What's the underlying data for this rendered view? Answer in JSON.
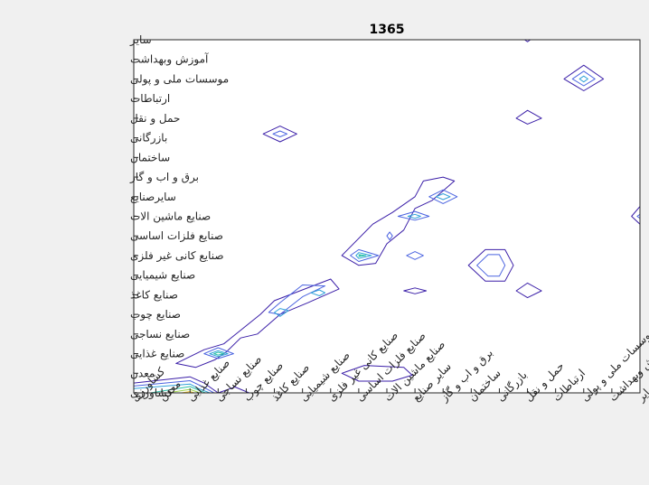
{
  "chart_data": {
    "type": "contour",
    "title": "1365",
    "xlabel": "",
    "ylabel": "",
    "grid": false,
    "categories": [
      "کشاورزی",
      "معدن",
      "صنایع غذایی",
      "صنایع نساجی",
      "صنایع چوب",
      "صنایع کاغذ",
      "صنایع شیمیایی",
      "صنایع کانی غیر فلزی",
      "صنایع فلزات اساسی",
      "صنایع ماشین الات",
      "سایر صنایع",
      "برق و اب و گاز",
      "ساختمان",
      "بازرگانی",
      "حمل و نقل",
      "ارتباطات",
      "موسسات ملی و پولی",
      "آموزش وبهداشت",
      "سایر"
    ],
    "x_tick_labels": [
      "کشاورزی",
      "معدن",
      "صنایع غذایی",
      "صنایع نساجی",
      "صنایع چوب",
      "صنایع کاغذ",
      "صنایع شیمیایی",
      "صنایع کانی غیر فلزی",
      "صنایع فلزات اساسی",
      "صنایع ماشین الات",
      "سایر صنایع",
      "برق و اب و گاز",
      "ساختمان",
      "بازرگانی",
      "حمل و نقل",
      "ارتباطات",
      "موسسات ملی و پولی",
      "آموزش وبهداشت",
      "سایر"
    ],
    "y_tick_labels": [
      "کشاورزی",
      "معدن",
      "صنایع غذایی",
      "صنایع  نساجی",
      "صنایع چوب",
      "صنایع کاغذ",
      "صنایع شیمیایی",
      "صنایع کانی غیر فلزی",
      "صنایع فلزات اساسی",
      "صنایع ماشین الات",
      "سایرصنایع",
      "برق و اب و گاز",
      "ساختمان",
      "بازرگانی",
      "حمل و نقل",
      "ارتباطات",
      "موسسات ملی و پولی",
      "آموزش وبهداشت",
      "سایر"
    ],
    "xlim": [
      1,
      19
    ],
    "ylim": [
      1,
      19
    ],
    "level_colors": [
      "#3b1fa8",
      "#4a63e0",
      "#2ea0d8",
      "#2cc0a8",
      "#9ed24a",
      "#f4c630"
    ],
    "contours": [
      {
        "id": "x1-3-y1-2",
        "level": 0,
        "path": [
          [
            1,
            1.5
          ],
          [
            3.0,
            1.82
          ],
          [
            3.5,
            1.5
          ],
          [
            4.0,
            1.0
          ]
        ]
      },
      {
        "id": "x1-3-y1-2b",
        "level": 1,
        "path": [
          [
            1,
            1.35
          ],
          [
            3.0,
            1.62
          ],
          [
            3.4,
            1.35
          ],
          [
            3.85,
            1.0
          ]
        ]
      },
      {
        "id": "x1-3-y1-2c",
        "level": 2,
        "path": [
          [
            1,
            1.22
          ],
          [
            3.0,
            1.45
          ],
          [
            3.3,
            1.22
          ],
          [
            3.7,
            1.0
          ]
        ]
      },
      {
        "id": "x1-3-y1-2d",
        "level": 3,
        "path": [
          [
            1.6,
            1.0
          ],
          [
            3.0,
            1.32
          ],
          [
            3.55,
            1.0
          ]
        ]
      },
      {
        "id": "x1-3-y1-2e",
        "level": 4,
        "path": [
          [
            2.2,
            1.0
          ],
          [
            3.0,
            1.18
          ],
          [
            3.35,
            1.0
          ]
        ]
      },
      {
        "id": "x1-3-y1-2f",
        "level": 5,
        "path": [
          [
            2.7,
            1.0
          ],
          [
            3.0,
            1.07
          ],
          [
            3.15,
            1.0
          ]
        ]
      },
      {
        "id": "corner-4",
        "level": 0,
        "path": [
          [
            4.0,
            1.0
          ],
          [
            4.6,
            1.3
          ],
          [
            5.1,
            1.0
          ]
        ]
      },
      {
        "id": "diag-lower",
        "level": 0,
        "closed": true,
        "path": [
          [
            2.5,
            2.5
          ],
          [
            3.5,
            3.2
          ],
          [
            4.2,
            3.5
          ],
          [
            5.5,
            5.0
          ],
          [
            6.0,
            5.7
          ],
          [
            8.0,
            6.8
          ],
          [
            8.3,
            6.3
          ],
          [
            7.2,
            5.6
          ],
          [
            6.2,
            5.0
          ],
          [
            5.4,
            4.0
          ],
          [
            4.8,
            3.8
          ],
          [
            4.3,
            3.1
          ],
          [
            3.9,
            2.7
          ],
          [
            3.2,
            2.3
          ]
        ]
      },
      {
        "id": "textile-1",
        "level": 1,
        "closed": true,
        "path": [
          [
            3.5,
            3.0
          ],
          [
            4.0,
            2.75
          ],
          [
            4.55,
            3.0
          ],
          [
            4.0,
            3.3
          ]
        ]
      },
      {
        "id": "textile-2",
        "level": 2,
        "closed": true,
        "path": [
          [
            3.7,
            3.0
          ],
          [
            4.0,
            2.85
          ],
          [
            4.35,
            3.0
          ],
          [
            4.0,
            3.15
          ]
        ]
      },
      {
        "id": "textile-3",
        "level": 3,
        "closed": true,
        "path": [
          [
            3.85,
            3.0
          ],
          [
            4.0,
            2.93
          ],
          [
            4.2,
            3.0
          ],
          [
            4.0,
            3.07
          ]
        ]
      },
      {
        "id": "paper-1",
        "level": 1,
        "closed": true,
        "path": [
          [
            5.8,
            5.1
          ],
          [
            6.2,
            5.6
          ],
          [
            7.0,
            6.5
          ],
          [
            7.8,
            6.45
          ],
          [
            7.0,
            5.9
          ],
          [
            6.2,
            5.0
          ]
        ]
      },
      {
        "id": "paper-2",
        "level": 2,
        "closed": true,
        "path": [
          [
            6.0,
            5.1
          ],
          [
            6.2,
            5.3
          ],
          [
            6.5,
            5.2
          ],
          [
            6.2,
            4.9
          ]
        ]
      },
      {
        "id": "chem-2",
        "level": 2,
        "closed": true,
        "path": [
          [
            7.3,
            6.1
          ],
          [
            7.6,
            6.25
          ],
          [
            7.8,
            6.1
          ],
          [
            7.6,
            5.95
          ]
        ]
      },
      {
        "id": "trade-1",
        "level": 0,
        "closed": true,
        "path": [
          [
            5.6,
            14.2
          ],
          [
            6.2,
            14.6
          ],
          [
            6.8,
            14.2
          ],
          [
            6.2,
            13.8
          ]
        ]
      },
      {
        "id": "trade-2",
        "level": 1,
        "closed": true,
        "path": [
          [
            5.95,
            14.2
          ],
          [
            6.2,
            14.35
          ],
          [
            6.45,
            14.2
          ],
          [
            6.2,
            14.05
          ]
        ]
      },
      {
        "id": "mid-diag",
        "level": 0,
        "closed": true,
        "path": [
          [
            8.4,
            8.0
          ],
          [
            9.5,
            9.6
          ],
          [
            10.2,
            10.2
          ],
          [
            11.0,
            11.0
          ],
          [
            11.3,
            11.8
          ],
          [
            12.0,
            12.0
          ],
          [
            12.4,
            11.8
          ],
          [
            11.6,
            10.8
          ],
          [
            11.0,
            10.4
          ],
          [
            10.6,
            9.3
          ],
          [
            10.0,
            8.6
          ],
          [
            9.6,
            7.6
          ],
          [
            9.0,
            7.5
          ]
        ]
      },
      {
        "id": "metal-1",
        "level": 1,
        "closed": true,
        "path": [
          [
            8.7,
            8.0
          ],
          [
            9.0,
            8.3
          ],
          [
            9.7,
            8.0
          ],
          [
            9.0,
            7.7
          ]
        ]
      },
      {
        "id": "metal-2",
        "level": 2,
        "closed": true,
        "path": [
          [
            8.9,
            8.0
          ],
          [
            9.0,
            8.15
          ],
          [
            9.45,
            8.0
          ],
          [
            9.0,
            7.85
          ]
        ]
      },
      {
        "id": "metal-3",
        "level": 3,
        "closed": true,
        "path": [
          [
            9.05,
            8.0
          ],
          [
            9.0,
            8.05
          ],
          [
            9.25,
            8.0
          ],
          [
            9.0,
            7.95
          ]
        ]
      },
      {
        "id": "mach-1",
        "level": 1,
        "closed": true,
        "path": [
          [
            10.0,
            9.0
          ],
          [
            10.1,
            9.2
          ],
          [
            10.2,
            9.0
          ],
          [
            10.1,
            8.8
          ]
        ]
      },
      {
        "id": "misc-1",
        "level": 1,
        "closed": true,
        "path": [
          [
            10.4,
            10.0
          ],
          [
            11.0,
            10.25
          ],
          [
            11.5,
            10.0
          ],
          [
            11.0,
            9.8
          ]
        ]
      },
      {
        "id": "misc-2",
        "level": 2,
        "closed": true,
        "path": [
          [
            10.75,
            10.0
          ],
          [
            11.0,
            10.1
          ],
          [
            11.2,
            10.0
          ],
          [
            11.0,
            9.9
          ]
        ]
      },
      {
        "id": "misc-3",
        "level": 1,
        "closed": true,
        "path": [
          [
            10.7,
            8.0
          ],
          [
            11.0,
            8.2
          ],
          [
            11.3,
            8.0
          ],
          [
            11.0,
            7.8
          ]
        ]
      },
      {
        "id": "power-1",
        "level": 1,
        "closed": true,
        "path": [
          [
            11.5,
            11.0
          ],
          [
            12.0,
            11.35
          ],
          [
            12.5,
            11.0
          ],
          [
            12.0,
            10.65
          ]
        ]
      },
      {
        "id": "power-2",
        "level": 2,
        "closed": true,
        "path": [
          [
            11.75,
            11.0
          ],
          [
            12.0,
            11.15
          ],
          [
            12.25,
            11.0
          ],
          [
            12.0,
            10.85
          ]
        ]
      },
      {
        "id": "misc-chem",
        "level": 0,
        "closed": true,
        "path": [
          [
            10.6,
            6.2
          ],
          [
            11.0,
            6.35
          ],
          [
            11.4,
            6.2
          ],
          [
            11.0,
            6.05
          ]
        ]
      },
      {
        "id": "build-1",
        "level": 0,
        "closed": true,
        "path": [
          [
            12.9,
            7.5
          ],
          [
            13.5,
            8.3
          ],
          [
            14.2,
            8.3
          ],
          [
            14.5,
            7.5
          ],
          [
            14.2,
            6.7
          ],
          [
            13.5,
            6.7
          ]
        ]
      },
      {
        "id": "build-2",
        "level": 1,
        "closed": true,
        "path": [
          [
            13.2,
            7.5
          ],
          [
            13.6,
            8.05
          ],
          [
            14.0,
            8.05
          ],
          [
            14.2,
            7.5
          ],
          [
            14.0,
            6.95
          ],
          [
            13.6,
            6.95
          ]
        ]
      },
      {
        "id": "trans-chem",
        "level": 0,
        "closed": true,
        "path": [
          [
            14.6,
            6.2
          ],
          [
            15.0,
            6.6
          ],
          [
            15.5,
            6.2
          ],
          [
            15.0,
            5.85
          ]
        ]
      },
      {
        "id": "trans-trans",
        "level": 0,
        "closed": true,
        "path": [
          [
            14.6,
            15.0
          ],
          [
            15.0,
            15.4
          ],
          [
            15.5,
            15.0
          ],
          [
            15.0,
            14.7
          ]
        ]
      },
      {
        "id": "fin-1",
        "level": 0,
        "closed": true,
        "path": [
          [
            16.3,
            17.0
          ],
          [
            17.0,
            17.7
          ],
          [
            17.7,
            17.0
          ],
          [
            17.0,
            16.4
          ]
        ]
      },
      {
        "id": "fin-2",
        "level": 1,
        "closed": true,
        "path": [
          [
            16.6,
            17.0
          ],
          [
            17.0,
            17.4
          ],
          [
            17.4,
            17.0
          ],
          [
            17.0,
            16.65
          ]
        ]
      },
      {
        "id": "fin-3",
        "level": 2,
        "closed": true,
        "path": [
          [
            16.85,
            17.0
          ],
          [
            17.0,
            17.15
          ],
          [
            17.15,
            17.0
          ],
          [
            17.0,
            16.85
          ]
        ]
      },
      {
        "id": "energy-1",
        "level": 0,
        "closed": true,
        "path": [
          [
            8.4,
            2.0
          ],
          [
            9.2,
            2.4
          ],
          [
            10.6,
            2.3
          ],
          [
            10.9,
            1.9
          ],
          [
            10.2,
            1.6
          ],
          [
            9.0,
            1.6
          ]
        ]
      },
      {
        "id": "other-edge",
        "level": 0,
        "path": [
          [
            19.0,
            10.5
          ],
          [
            18.7,
            10.0
          ],
          [
            19.0,
            9.6
          ]
        ]
      },
      {
        "id": "other-edge-2",
        "level": 1,
        "path": [
          [
            19.0,
            10.1
          ],
          [
            18.9,
            10.0
          ],
          [
            19.0,
            9.9
          ]
        ]
      },
      {
        "id": "top-edge",
        "level": 0,
        "path": [
          [
            14.9,
            19.0
          ],
          [
            15.0,
            18.9
          ],
          [
            15.1,
            19.0
          ]
        ]
      }
    ]
  }
}
